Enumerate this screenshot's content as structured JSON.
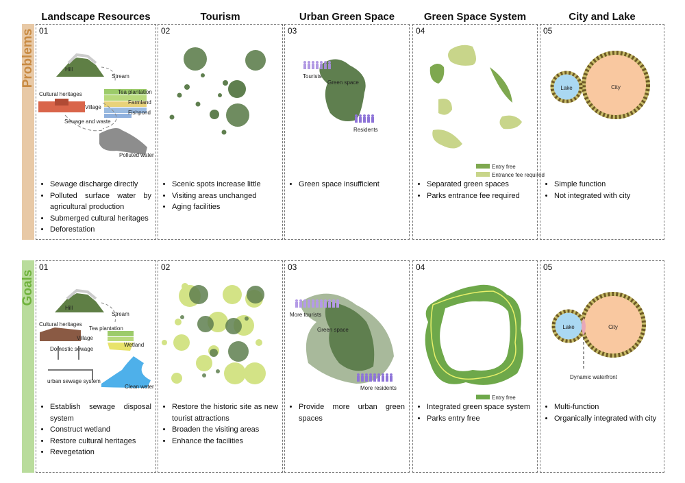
{
  "columns": [
    "Landscape Resources",
    "Tourism",
    "Urban Green Space",
    "Green Space System",
    "City and Lake"
  ],
  "rows": [
    {
      "label": "Problems",
      "panels": [
        {
          "number": "01",
          "labels": [
            "Hill",
            "Stream",
            "Tea plantation",
            "Cultural heritages",
            "Village",
            "Farmland",
            "Fishpond",
            "Sewage and waste",
            "Polluted water"
          ],
          "bullets": [
            "Sewage discharge directly",
            "Polluted surface water by agricultural production",
            "Submerged cultural heritages",
            "Deforestation"
          ]
        },
        {
          "number": "02",
          "bullets": [
            "Scenic spots increase little",
            "Visiting areas unchanged",
            "Aging facilities"
          ]
        },
        {
          "number": "03",
          "labels": [
            "Tourists",
            "Green space",
            "Residents"
          ],
          "bullets": [
            "Green space insufficient"
          ]
        },
        {
          "number": "04",
          "labels": [
            "Entry free",
            "Entrance fee required"
          ],
          "bullets": [
            "Separated green spaces",
            "Parks entrance fee required"
          ]
        },
        {
          "number": "05",
          "labels": [
            "Lake",
            "City"
          ],
          "bullets": [
            "Simple function",
            "Not integrated with city"
          ]
        }
      ]
    },
    {
      "label": "Goals",
      "panels": [
        {
          "number": "01",
          "labels": [
            "Hill",
            "Stream",
            "Cultural heritages",
            "Tea plantation",
            "Village",
            "Wetland",
            "Domestic sewage",
            "urban sewage system",
            "Clean water"
          ],
          "bullets": [
            "Establish sewage disposal system",
            "Construct wetland",
            "Restore cultural heritages",
            "Revegetation"
          ]
        },
        {
          "number": "02",
          "bullets": [
            "Restore the historic site as new tourist attractions",
            "Broaden the visiting areas",
            "Enhance the facilities"
          ]
        },
        {
          "number": "03",
          "labels": [
            "More tourists",
            "Green space",
            "More residents"
          ],
          "bullets": [
            "Provide more urban green spaces"
          ]
        },
        {
          "number": "04",
          "labels": [
            "Entry free"
          ],
          "bullets": [
            "Integrated green space system",
            "Parks entry free"
          ]
        },
        {
          "number": "05",
          "labels": [
            "Lake",
            "City",
            "Dynamic waterfront"
          ],
          "bullets": [
            "Multi-function",
            "Organically integrated with city"
          ]
        }
      ]
    }
  ]
}
